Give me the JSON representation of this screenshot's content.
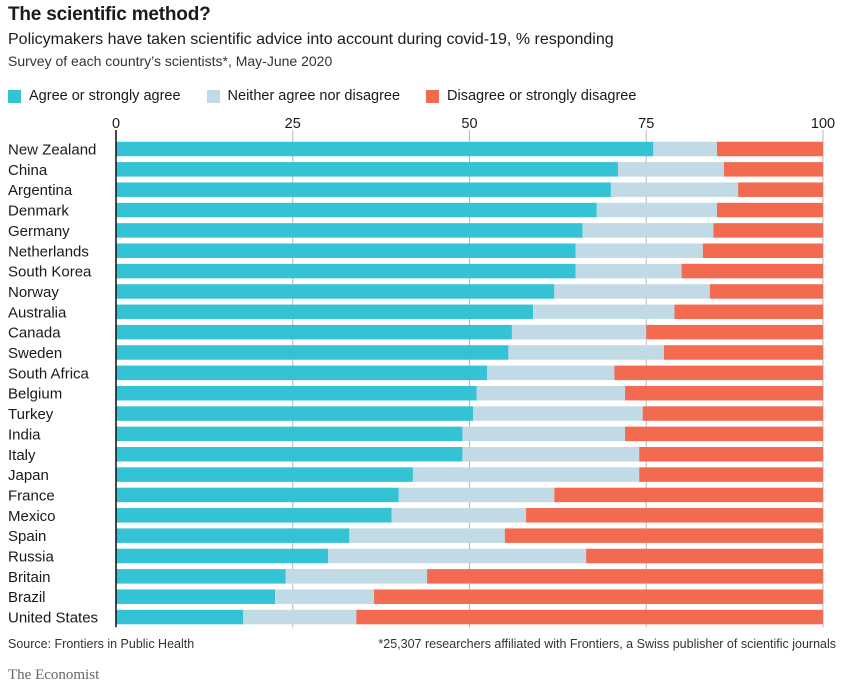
{
  "colors": {
    "agree": "#34c3d4",
    "neither": "#c1dae5",
    "disagree": "#f26a50",
    "grid": "#b8b8b8",
    "axis": "#1a1a1a"
  },
  "chart_data": {
    "type": "bar",
    "orientation": "horizontal",
    "stacked": true,
    "title": "The scientific method?",
    "subtitle": "Policymakers have taken scientific advice into account during covid-19, % responding",
    "note": "Survey of each country’s scientists*, May-June 2020",
    "xlim": [
      0,
      100
    ],
    "xticks": [
      0,
      25,
      50,
      75,
      100
    ],
    "grid": true,
    "legend_position": "top",
    "categories": [
      "New Zealand",
      "China",
      "Argentina",
      "Denmark",
      "Germany",
      "Netherlands",
      "South Korea",
      "Norway",
      "Australia",
      "Canada",
      "Sweden",
      "South Africa",
      "Belgium",
      "Turkey",
      "India",
      "Italy",
      "Japan",
      "France",
      "Mexico",
      "Spain",
      "Russia",
      "Britain",
      "Brazil",
      "United States"
    ],
    "series": [
      {
        "name": "Agree or strongly agree",
        "color": "agree",
        "values": [
          76,
          71,
          70,
          68,
          66,
          65,
          65,
          62,
          59,
          56,
          55.5,
          52.5,
          51,
          50.5,
          49,
          49,
          42,
          40,
          39,
          33,
          30,
          24,
          22.5,
          18
        ]
      },
      {
        "name": "Neither agree nor disagree",
        "color": "neither",
        "values": [
          9,
          15,
          18,
          17,
          18.5,
          18,
          15,
          22,
          20,
          19,
          22,
          18,
          21,
          24,
          23,
          25,
          32,
          22,
          19,
          22,
          36.5,
          20,
          14,
          16
        ]
      },
      {
        "name": "Disagree or strongly disagree",
        "color": "disagree",
        "values": [
          15,
          14,
          12,
          15,
          15.5,
          17,
          20,
          16,
          21,
          25,
          22.5,
          29.5,
          28,
          25.5,
          28,
          26,
          26,
          38,
          42,
          45,
          33.5,
          56,
          63.5,
          66
        ]
      }
    ]
  },
  "footer": {
    "source": "Source: Frontiers in Public Health",
    "footnote": "*25,307 researchers affiliated with Frontiers, a Swiss publisher of scientific journals",
    "brand": "The Economist"
  }
}
